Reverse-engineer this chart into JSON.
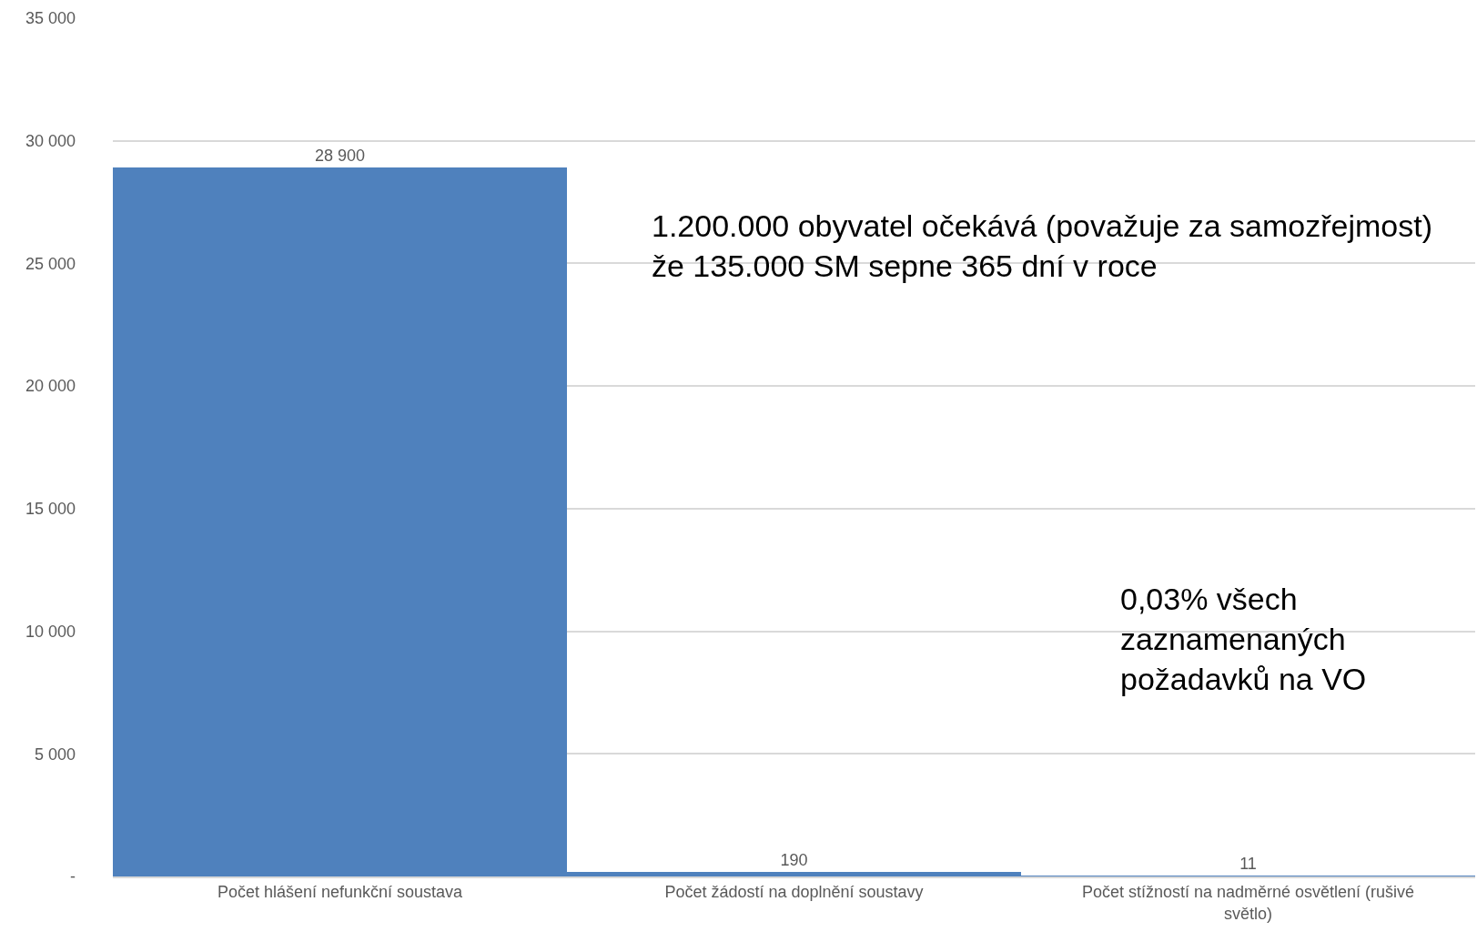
{
  "chart_data": {
    "type": "bar",
    "categories": [
      "Počet hlášení nefunkční soustava",
      "Počet žádostí na doplnění soustavy",
      "Počet stížností na nadměrné osvětlení (rušivé světlo)"
    ],
    "values": [
      28900,
      190,
      11
    ],
    "value_labels": [
      "28 900",
      "190",
      "11"
    ],
    "color": "#4f81bd",
    "ylim": [
      0,
      35000
    ],
    "yticks": [
      {
        "value": 0,
        "label": "-"
      },
      {
        "value": 5000,
        "label": "5 000"
      },
      {
        "value": 10000,
        "label": "10 000"
      },
      {
        "value": 15000,
        "label": "15 000"
      },
      {
        "value": 20000,
        "label": "20 000"
      },
      {
        "value": 25000,
        "label": "25 000"
      },
      {
        "value": 30000,
        "label": "30 000"
      },
      {
        "value": 35000,
        "label": "35 000"
      }
    ],
    "grid": "y",
    "annotations": [
      "1.200.000 obyvatel očekává (považuje za samozřejmost)\nže 135.000 SM sepne 365 dní v roce",
      "0,03% všech\nzaznamenaných\npožadavků na VO"
    ]
  }
}
